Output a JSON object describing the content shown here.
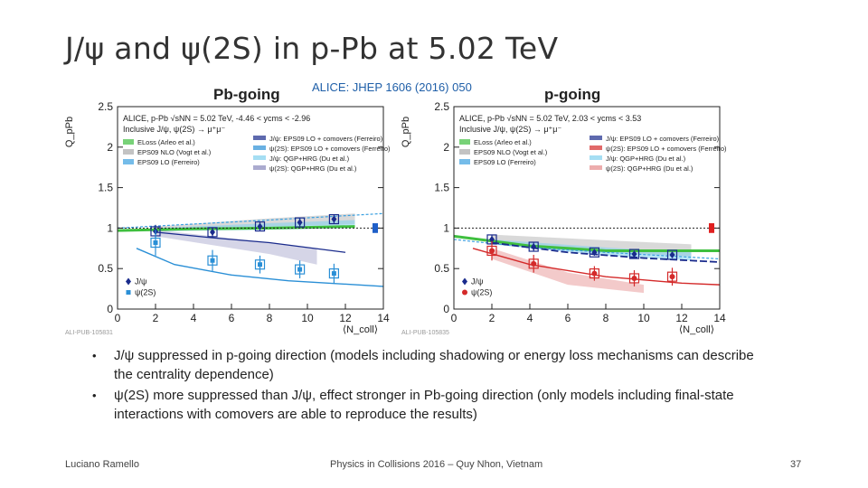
{
  "slide": {
    "title": "J/ψ and ψ(2S) in p-Pb at 5.02 TeV",
    "citation": "ALICE: JHEP 1606 (2016) 050",
    "bullets": [
      "J/ψ suppressed in p-going direction (models including shadowing or energy loss mechanisms can describe the centrality dependence)",
      "ψ(2S) more suppressed than J/ψ, effect stronger in Pb-going direction (only models including final-state interactions with comovers are able to reproduce the results)"
    ],
    "bullet_symbol": "•",
    "footer_left": "Luciano Ramello",
    "footer_center": "Physics in Collisions 2016 – Quy Nhon, Vietnam",
    "page_number": "37"
  },
  "colors": {
    "jpsi_pb": "#1a2b8c",
    "psi2s_pb": "#2a8fd6",
    "jpsi_p": "#1a2b8c",
    "psi2s_p": "#d42a2a",
    "eloss": "#3fbf3f",
    "eps09nlo": "#aaaaaa",
    "syst_pb": "#1f5fc8",
    "syst_p": "#e02020"
  },
  "chart_data": [
    {
      "type": "scatter",
      "panel_title": "Pb-going",
      "ylabel": "Q_pPb",
      "xlabel": "⟨N_coll⟩",
      "xlim": [
        0,
        14
      ],
      "ylim": [
        0,
        2.5
      ],
      "xticks": [
        0,
        2,
        4,
        6,
        8,
        10,
        12,
        14
      ],
      "yticks": [
        0,
        0.5,
        1,
        1.5,
        2,
        2.5
      ],
      "reference_line": 1,
      "header_lines": [
        "ALICE, p-Pb √sNN = 5.02 TeV, -4.46 < ycms < -2.96",
        "Inclusive J/ψ, ψ(2S) → μ⁺μ⁻"
      ],
      "model_legend_left": [
        "ELoss (Arleo et al.)",
        "EPS09 NLO (Vogt et al.)",
        "EPS09 LO (Ferreiro)"
      ],
      "model_legend_right": [
        "J/ψ: EPS09 LO + comovers (Ferreiro)",
        "ψ(2S): EPS09 LO + comovers (Ferreiro)",
        "J/ψ: QGP+HRG (Du et al.)",
        "ψ(2S): QGP+HRG (Du et al.)"
      ],
      "series": [
        {
          "name": "J/ψ",
          "x": [
            2.0,
            5.0,
            7.5,
            9.6,
            11.4
          ],
          "y": [
            0.96,
            0.95,
            1.02,
            1.07,
            1.11
          ],
          "err": [
            0.08,
            0.06,
            0.05,
            0.05,
            0.06
          ]
        },
        {
          "name": "ψ(2S)",
          "x": [
            2.0,
            5.0,
            7.5,
            9.6,
            11.4
          ],
          "y": [
            0.82,
            0.6,
            0.55,
            0.49,
            0.44
          ],
          "err": [
            0.16,
            0.13,
            0.11,
            0.11,
            0.12
          ]
        }
      ],
      "watermark": "ALI-PUB-105831"
    },
    {
      "type": "scatter",
      "panel_title": "p-going",
      "ylabel": "Q_pPb",
      "xlabel": "⟨N_coll⟩",
      "xlim": [
        0,
        14
      ],
      "ylim": [
        0,
        2.5
      ],
      "xticks": [
        0,
        2,
        4,
        6,
        8,
        10,
        12,
        14
      ],
      "yticks": [
        0,
        0.5,
        1,
        1.5,
        2,
        2.5
      ],
      "reference_line": 1,
      "header_lines": [
        "ALICE, p-Pb √sNN = 5.02 TeV, 2.03 < ycms < 3.53",
        "Inclusive J/ψ, ψ(2S) → μ⁺μ⁻"
      ],
      "model_legend_left": [
        "ELoss (Arleo et al.)",
        "EPS09 NLO (Vogt et al.)",
        "EPS09 LO (Ferreiro)"
      ],
      "model_legend_right": [
        "J/ψ: EPS09 LO + comovers (Ferreiro)",
        "ψ(2S): EPS09 LO + comovers (Ferreiro)",
        "J/ψ: QGP+HRG (Du et al.)",
        "ψ(2S): QGP+HRG (Du et al.)"
      ],
      "series": [
        {
          "name": "J/ψ",
          "x": [
            2.0,
            4.2,
            7.4,
            9.5,
            11.5
          ],
          "y": [
            0.86,
            0.77,
            0.7,
            0.68,
            0.67
          ],
          "err": [
            0.06,
            0.05,
            0.04,
            0.04,
            0.04
          ]
        },
        {
          "name": "ψ(2S)",
          "x": [
            2.0,
            4.2,
            7.4,
            9.5,
            11.5
          ],
          "y": [
            0.72,
            0.56,
            0.44,
            0.38,
            0.4
          ],
          "err": [
            0.12,
            0.11,
            0.09,
            0.1,
            0.11
          ]
        }
      ],
      "watermark": "ALI-PUB-105835"
    }
  ]
}
